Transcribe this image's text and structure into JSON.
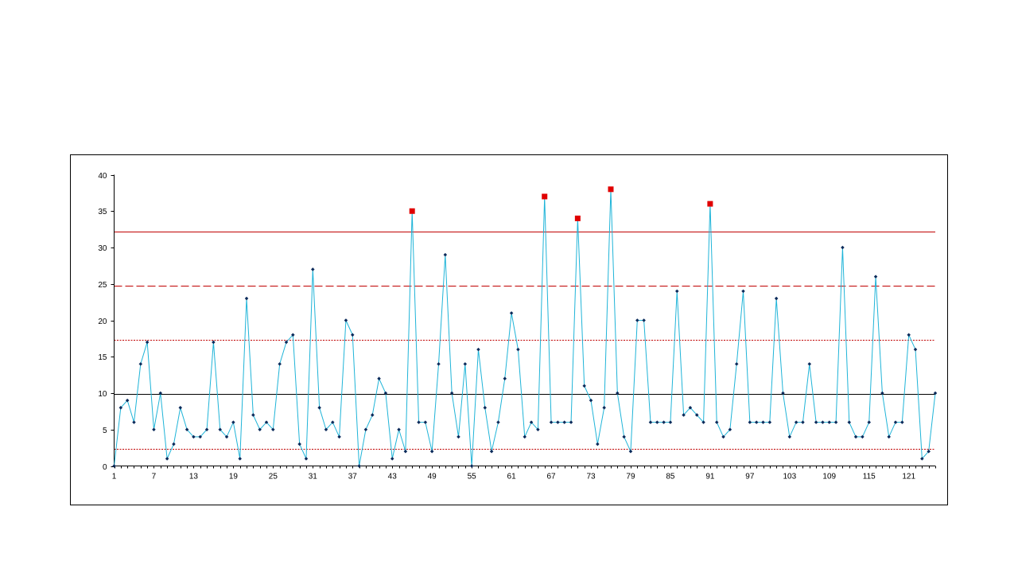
{
  "chart_data": {
    "type": "line",
    "title": "",
    "xlabel": "",
    "ylabel": "",
    "ylim": [
      0,
      40
    ],
    "y_ticks": [
      0,
      5,
      10,
      15,
      20,
      25,
      30,
      35,
      40
    ],
    "y_tick_labels": [
      "0",
      "5",
      "10",
      "15",
      "20",
      "25",
      "30",
      "35",
      "40"
    ],
    "x_tick_labels": [
      "1",
      "7",
      "13",
      "19",
      "25",
      "31",
      "37",
      "43",
      "49",
      "55",
      "61",
      "67",
      "73",
      "79",
      "85",
      "91",
      "97",
      "103",
      "109",
      "115",
      "121"
    ],
    "x_tick_positions": [
      1,
      7,
      13,
      19,
      25,
      31,
      37,
      43,
      49,
      55,
      61,
      67,
      73,
      79,
      85,
      91,
      97,
      103,
      109,
      115,
      121
    ],
    "x_range": [
      1,
      125
    ],
    "grid": false,
    "legend": "none",
    "series": [
      {
        "values": [
          0,
          8,
          9,
          6,
          14,
          17,
          5,
          10,
          1,
          3,
          8,
          5,
          4,
          4,
          5,
          17,
          5,
          4,
          6,
          1,
          23,
          7,
          5,
          6,
          5,
          14,
          17,
          18,
          3,
          1,
          27,
          8,
          5,
          6,
          4,
          20,
          18,
          0,
          5,
          7,
          12,
          10,
          1,
          5,
          2,
          35,
          6,
          6,
          2,
          14,
          29,
          10,
          4,
          14,
          0,
          16,
          8,
          2,
          6,
          12,
          21,
          16,
          4,
          6,
          5,
          37,
          6,
          6,
          6,
          6,
          34,
          11,
          9,
          3,
          8,
          38,
          10,
          4,
          2,
          20,
          20,
          6,
          6,
          6,
          6,
          24,
          7,
          8,
          7,
          6,
          36,
          6,
          4,
          5,
          14,
          24,
          6,
          6,
          6,
          6,
          23,
          10,
          4,
          6,
          6,
          14,
          6,
          6,
          6,
          6,
          30,
          6,
          4,
          4,
          6,
          26,
          10,
          4,
          6,
          6,
          18,
          16,
          1,
          2,
          10
        ],
        "color": "#1fb4d8",
        "marker_color": "#0b2a5a"
      }
    ],
    "out_of_control_points": [
      46,
      66,
      71,
      76,
      91
    ],
    "out_of_control_color": "#e00000",
    "reference_lines": [
      {
        "name": "UCL",
        "value": 32.2,
        "style": "solid",
        "color": "#c00000"
      },
      {
        "name": "2-sigma",
        "value": 24.8,
        "style": "long-dash",
        "color": "#c00000"
      },
      {
        "name": "1-sigma",
        "value": 17.3,
        "style": "dotted",
        "color": "#c00000"
      },
      {
        "name": "Center",
        "value": 9.9,
        "style": "solid",
        "color": "#000000"
      },
      {
        "name": "LCL-1",
        "value": 2.4,
        "style": "dotted",
        "color": "#c00000"
      }
    ]
  }
}
